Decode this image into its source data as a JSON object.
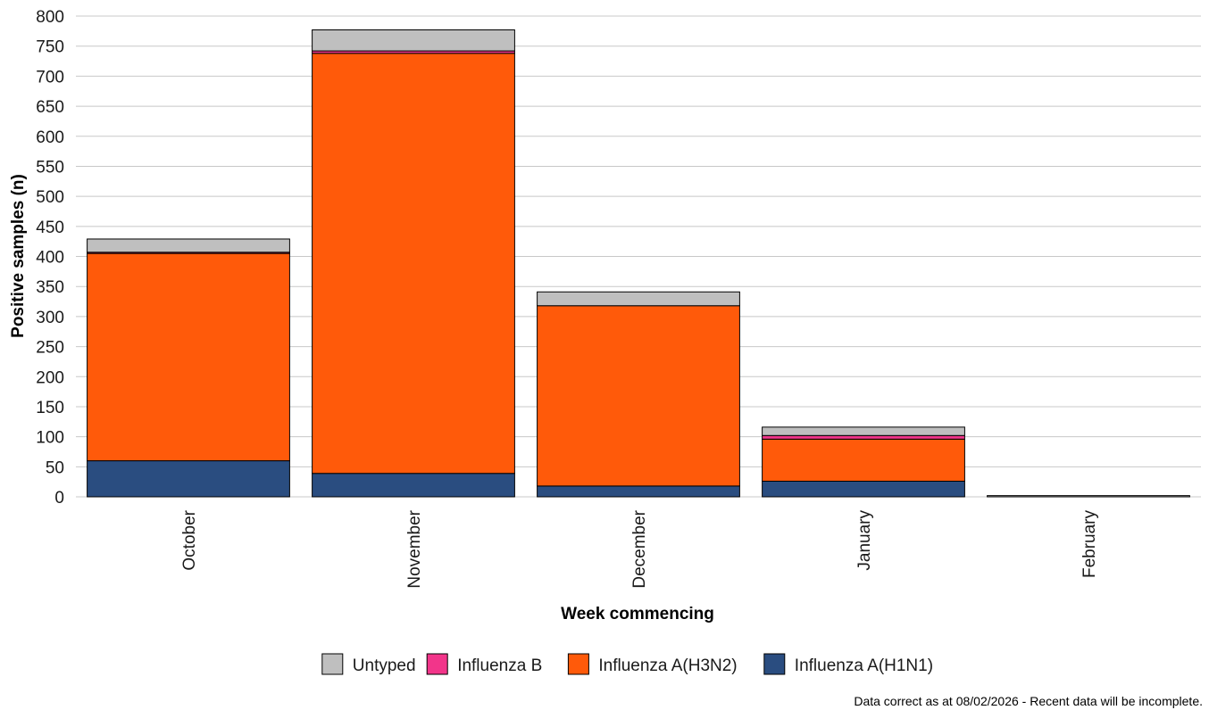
{
  "chart_data": {
    "type": "bar",
    "stacked": true,
    "categories": [
      "October",
      "November",
      "December",
      "January",
      "February"
    ],
    "series": [
      {
        "name": "Influenza A(H1N1)",
        "color": "#2a4d80",
        "values": [
          60,
          39,
          18,
          26,
          0
        ]
      },
      {
        "name": "Influenza A(H3N2)",
        "color": "#ff5a0a",
        "values": [
          345,
          699,
          300,
          70,
          0
        ]
      },
      {
        "name": "Influenza B",
        "color": "#f2358a",
        "values": [
          2,
          4,
          0,
          6,
          0
        ]
      },
      {
        "name": "Untyped",
        "color": "#bfbfbf",
        "values": [
          22,
          35,
          23,
          14,
          2
        ]
      }
    ],
    "legend_order": [
      "Untyped",
      "Influenza B",
      "Influenza A(H3N2)",
      "Influenza A(H1N1)"
    ],
    "xlabel": "Week commencing",
    "ylabel": "Positive samples (n)",
    "ylim": [
      0,
      800
    ],
    "yticks": [
      0,
      50,
      100,
      150,
      200,
      250,
      300,
      350,
      400,
      450,
      500,
      550,
      600,
      650,
      700,
      750,
      800
    ],
    "grid": "horizontal",
    "legend_position": "bottom",
    "note": "Data correct as at 08/02/2026 - Recent data will be incomplete."
  }
}
